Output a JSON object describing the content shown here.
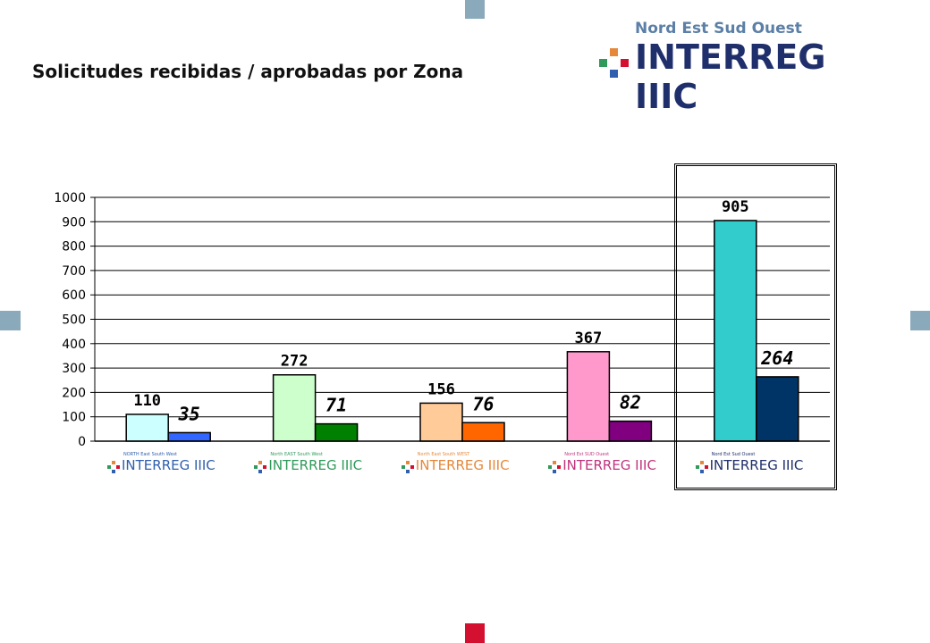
{
  "page": {
    "title": "Solicitudes recibidas / aprobadas por Zona",
    "logo_top": "Nord Est Sud Ouest",
    "logo_main": "INTERREG IIIC"
  },
  "colors": {
    "decor_blue": "#8aaabb",
    "decor_red": "#d3102f",
    "logo_blue": "#5b7fa6",
    "logo_navy": "#1f2f6b"
  },
  "chart_data": {
    "type": "bar",
    "title": "",
    "xlabel": "",
    "ylabel": "",
    "ylim": [
      0,
      1000
    ],
    "yticks": [
      0,
      100,
      200,
      300,
      400,
      500,
      600,
      700,
      800,
      900,
      1000
    ],
    "grid": true,
    "legend": "none",
    "categories": [
      {
        "logo_top": "NORTH East South West",
        "logo_main": "INTERREG IIIC",
        "color": "#2f5fae"
      },
      {
        "logo_top": "North EAST South West",
        "logo_main": "INTERREG IIIC",
        "color": "#2f9a5a"
      },
      {
        "logo_top": "North East South WEST",
        "logo_main": "INTERREG IIIC",
        "color": "#e6883a"
      },
      {
        "logo_top": "Nord Est SUD Ouest",
        "logo_main": "INTERREG IIIC",
        "color": "#c0347e"
      },
      {
        "logo_top": "Nord Est Sud Ouest",
        "logo_main": "INTERREG IIIC",
        "color": "#1f2f6b"
      }
    ],
    "series": [
      {
        "values": [
          110,
          272,
          156,
          367,
          905
        ],
        "labels": [
          "110",
          "272",
          "156",
          "367",
          "905"
        ],
        "colors": [
          "#ccffff",
          "#ccffcc",
          "#ffcc99",
          "#ff99cc",
          "#33cccc"
        ]
      },
      {
        "values": [
          35,
          71,
          76,
          82,
          264
        ],
        "labels": [
          "35",
          "71",
          "76",
          "82",
          "264"
        ],
        "colors": [
          "#3366ff",
          "#008000",
          "#ff6600",
          "#800080",
          "#003366"
        ]
      }
    ]
  }
}
